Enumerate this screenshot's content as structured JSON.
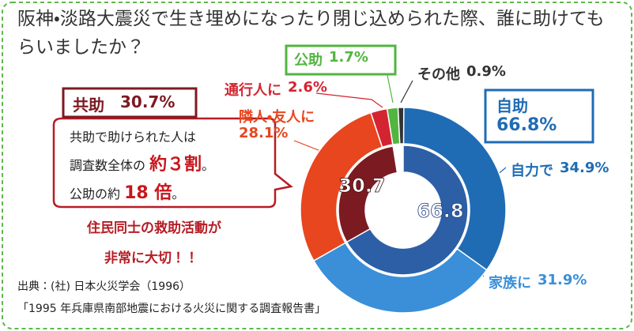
{
  "chart_data": {
    "type": "donut",
    "title": "阪神・淡路大震災で生き埋めになったり閉じ込められた際、誰に助けてもらいましたか？",
    "rings": [
      {
        "categories": [
          "自力で",
          "家族に",
          "隣人・友人に",
          "通行人に",
          "公助",
          "その他"
        ],
        "values": [
          34.9,
          31.9,
          28.1,
          2.6,
          1.7,
          0.9
        ],
        "value_labels": [
          "34.9%",
          "31.9%",
          "28.1%",
          "2.6%",
          "1.7%",
          "0.9%"
        ],
        "colors": [
          "#1f6cb4",
          "#3a8fd8",
          "#e8461f",
          "#d42431",
          "#52b540",
          "#333333"
        ]
      },
      {
        "categories": [
          "自助",
          "共助"
        ],
        "values": [
          66.8,
          30.7
        ],
        "value_labels": [
          "66.8%",
          "30.7%"
        ],
        "colors": [
          "#2d5fa6",
          "#7c1a22"
        ]
      }
    ]
  },
  "annotations": {
    "callout": [
      "共助で助けられた人は",
      "調査数全体の",
      "約３割",
      "。",
      "公助の約",
      "18 倍",
      "。"
    ],
    "message": [
      "住民同士の救助活動が",
      "非常に大切！！"
    ],
    "source": [
      "出典：(社) 日本火災学会（1996）",
      "「1995 年兵庫県南部地震における火災に関する調査報告書」"
    ]
  }
}
